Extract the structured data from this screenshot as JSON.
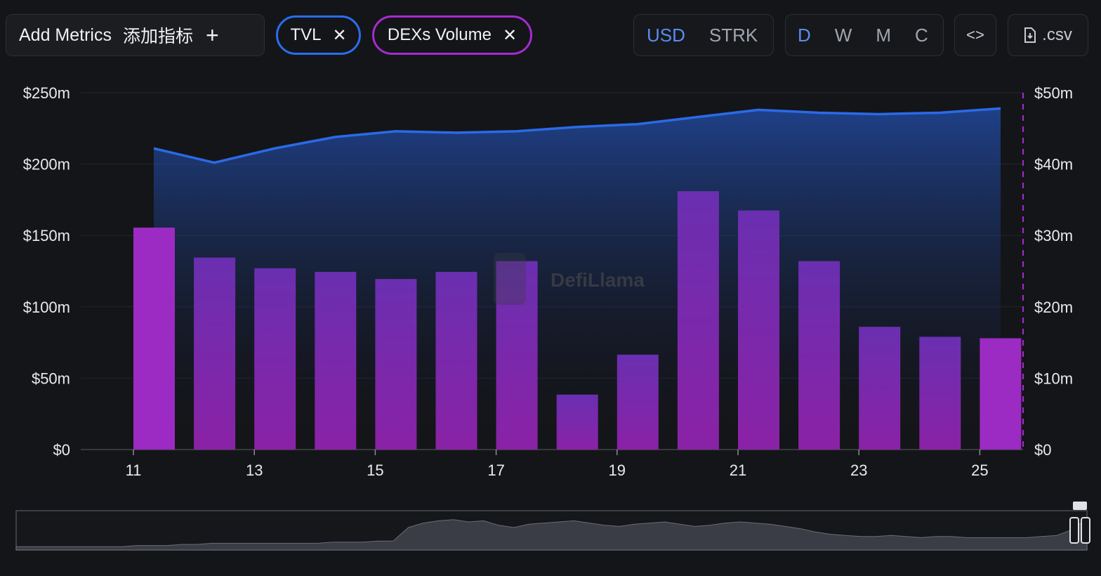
{
  "toolbar": {
    "add_metrics_label": "Add Metrics",
    "add_metrics_cn": "添加指标",
    "plus_icon": "+",
    "tags": [
      {
        "label": "TVL",
        "color": "#2a6df0"
      },
      {
        "label": "DEXs Volume",
        "color": "#a52bd0"
      }
    ],
    "currency_options": [
      "USD",
      "STRK"
    ],
    "currency_selected": "USD",
    "period_options": [
      "D",
      "W",
      "M",
      "C"
    ],
    "period_selected": "D",
    "embed_icon": "code-brackets-icon",
    "embed_label": "<>",
    "csv_label": ".csv",
    "csv_icon": "file-download-icon"
  },
  "watermark": "DefiLlama",
  "colors": {
    "tvl_line": "#2a6ae8",
    "dex_bar": "#8a25b8",
    "background": "#141518",
    "grid": "#25272c"
  },
  "chart_data": {
    "type": "bar+area",
    "x": [
      "11",
      "12",
      "13",
      "14",
      "15",
      "16",
      "17",
      "18",
      "19",
      "20",
      "21",
      "22",
      "23",
      "24",
      "25"
    ],
    "x_tick_labels": [
      "11",
      "13",
      "15",
      "17",
      "19",
      "21",
      "23",
      "25"
    ],
    "series": [
      {
        "name": "TVL",
        "type": "area",
        "axis": "left",
        "values": [
          211,
          201,
          211,
          219,
          223,
          222,
          223,
          226,
          228,
          233,
          238,
          236,
          235,
          236,
          239
        ]
      },
      {
        "name": "DEXs Volume",
        "type": "bar",
        "axis": "right",
        "values": [
          31.1,
          26.9,
          25.4,
          24.9,
          23.9,
          24.9,
          26.4,
          7.7,
          13.3,
          36.2,
          33.5,
          26.4,
          17.2,
          15.8,
          15.6
        ]
      }
    ],
    "y_left": {
      "min": 0,
      "max": 250,
      "ticks": [
        "$0",
        "$50m",
        "$100m",
        "$150m",
        "$200m",
        "$250m"
      ]
    },
    "y_right": {
      "min": 0,
      "max": 50,
      "ticks": [
        "$0",
        "$10m",
        "$20m",
        "$30m",
        "$40m",
        "$50m"
      ]
    },
    "unit": "USD millions",
    "grid": true,
    "navigator_profile": [
      3,
      3,
      3,
      3,
      3,
      3,
      3,
      3,
      4,
      4,
      4,
      5,
      5,
      6,
      6,
      6,
      6,
      6,
      6,
      6,
      6,
      7,
      7,
      7,
      8,
      8,
      20,
      24,
      26,
      27,
      25,
      26,
      22,
      20,
      23,
      24,
      25,
      26,
      24,
      22,
      21,
      23,
      24,
      25,
      23,
      21,
      22,
      24,
      25,
      24,
      23,
      21,
      19,
      16,
      14,
      13,
      12,
      12,
      13,
      12,
      11,
      12,
      12,
      11,
      11,
      11,
      11,
      11,
      12,
      13,
      18,
      28
    ]
  }
}
